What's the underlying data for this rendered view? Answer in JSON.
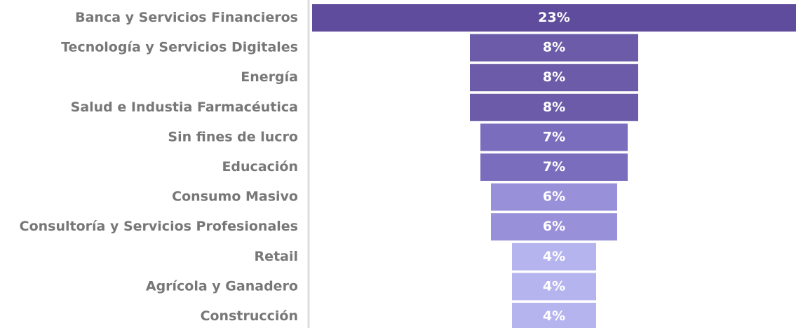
{
  "chart_data": {
    "type": "funnel",
    "categories": [
      "Banca y Servicios Financieros",
      "Tecnología y Servicios Digitales",
      "Energía",
      "Salud e Industia Farmacéutica",
      "Sin fines de lucro",
      "Educación",
      "Consumo Masivo",
      "Consultoría y Servicios Profesionales",
      "Retail",
      "Agrícola y Ganadero",
      "Construcción"
    ],
    "values": [
      23,
      8,
      8,
      8,
      7,
      7,
      6,
      6,
      4,
      4,
      4
    ],
    "value_labels": [
      "23%",
      "8%",
      "8%",
      "8%",
      "7%",
      "7%",
      "6%",
      "6%",
      "4%",
      "4%",
      "4%"
    ],
    "colors": [
      "#604c9c",
      "#6b5ba8",
      "#6b5ba8",
      "#6b5ba8",
      "#7b6dbd",
      "#7b6dbd",
      "#9891da",
      "#9891da",
      "#b6b4ef",
      "#b6b4ef",
      "#b6b4ef"
    ]
  }
}
